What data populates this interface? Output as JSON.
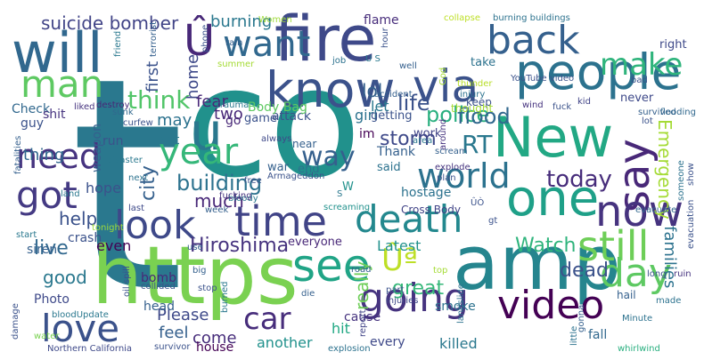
{
  "words": [
    {
      "text": "t",
      "color": "#2a788e"
    },
    {
      "text": "co",
      "color": "#21918c"
    },
    {
      "text": "https",
      "color": "#7ad151"
    },
    {
      "text": "amp",
      "color": "#25858e"
    },
    {
      "text": "fire",
      "color": "#3e4989"
    },
    {
      "text": "will",
      "color": "#31688e"
    },
    {
      "text": "New",
      "color": "#22a884"
    },
    {
      "text": "people",
      "color": "#2c728e"
    },
    {
      "text": "know",
      "color": "#3b528b"
    },
    {
      "text": "Û",
      "color": "#482878"
    },
    {
      "text": "want",
      "color": "#31688e"
    },
    {
      "text": "back",
      "color": "#35608d"
    },
    {
      "text": "man",
      "color": "#5ec962"
    },
    {
      "text": "via",
      "color": "#3b528b"
    },
    {
      "text": "u",
      "color": "#2a788e"
    },
    {
      "text": "year",
      "color": "#35b779"
    },
    {
      "text": "say",
      "color": "#482878"
    },
    {
      "text": "one",
      "color": "#1fa088"
    },
    {
      "text": "time",
      "color": "#414487"
    },
    {
      "text": "death",
      "color": "#23888e"
    },
    {
      "text": "now",
      "color": "#46337f"
    },
    {
      "text": "look",
      "color": "#3e4989"
    },
    {
      "text": "got",
      "color": "#443a83"
    },
    {
      "text": "world",
      "color": "#2c728e"
    },
    {
      "text": "need",
      "color": "#46337f"
    },
    {
      "text": "still",
      "color": "#6ece58"
    },
    {
      "text": "see",
      "color": "#20a486"
    },
    {
      "text": "going",
      "color": "#46337f"
    },
    {
      "text": "day",
      "color": "#5ec962"
    },
    {
      "text": "video",
      "color": "#440154"
    },
    {
      "text": "love",
      "color": "#3b528b"
    },
    {
      "text": "car",
      "color": "#472d7b"
    },
    {
      "text": "Ûª",
      "color": "#bddf26"
    },
    {
      "text": "make",
      "color": "#2fb47c"
    },
    {
      "text": "think",
      "color": "#52c569"
    },
    {
      "text": "today",
      "color": "#472d7b"
    },
    {
      "text": "RT",
      "color": "#2a788e"
    },
    {
      "text": "way",
      "color": "#35608d"
    },
    {
      "text": "Hiroshima",
      "color": "#46337f"
    },
    {
      "text": "Watch",
      "color": "#2fb47c"
    },
    {
      "text": "suicide bomber",
      "color": "#414487"
    },
    {
      "text": "burning",
      "color": "#2a788e"
    },
    {
      "text": "flame",
      "color": "#472d7b"
    },
    {
      "text": "Check",
      "color": "#31688e"
    },
    {
      "text": "home",
      "color": "#3e4989"
    },
    {
      "text": "first",
      "color": "#3b528b"
    },
    {
      "text": "lol",
      "color": "#35608d"
    },
    {
      "text": "police",
      "color": "#29af7f"
    },
    {
      "text": "storm",
      "color": "#3e4989"
    },
    {
      "text": "life",
      "color": "#3b528b"
    },
    {
      "text": "flood",
      "color": "#31688e"
    },
    {
      "text": "fear",
      "color": "#482878"
    },
    {
      "text": "girl",
      "color": "#2c728e"
    },
    {
      "text": "let",
      "color": "#2a788e"
    },
    {
      "text": "attack",
      "color": "#3b528b"
    },
    {
      "text": "Emergency",
      "color": "#a5db36"
    },
    {
      "text": "building",
      "color": "#2c728e"
    },
    {
      "text": "city",
      "color": "#35608d"
    },
    {
      "text": "two",
      "color": "#482878"
    },
    {
      "text": "may",
      "color": "#2c728e"
    },
    {
      "text": "Body Bag",
      "color": "#5ec962"
    },
    {
      "text": "much",
      "color": "#482878"
    },
    {
      "text": "help",
      "color": "#3b528b"
    },
    {
      "text": "thing",
      "color": "#31688e"
    },
    {
      "text": "live",
      "color": "#31688e"
    },
    {
      "text": "crash",
      "color": "#3b528b"
    },
    {
      "text": "good",
      "color": "#2a788e"
    },
    {
      "text": "hope",
      "color": "#3b528b"
    },
    {
      "text": "even",
      "color": "#440154"
    },
    {
      "text": "Latest",
      "color": "#21918c"
    },
    {
      "text": "dead",
      "color": "#3b528b"
    },
    {
      "text": "families",
      "color": "#2c728e"
    },
    {
      "text": "great",
      "color": "#35b779"
    },
    {
      "text": "really",
      "color": "#6ece58"
    },
    {
      "text": "bomb",
      "color": "#482878"
    },
    {
      "text": "siren",
      "color": "#35608d"
    },
    {
      "text": "Photo",
      "color": "#3e4989"
    },
    {
      "text": "Please",
      "color": "#3e4989"
    },
    {
      "text": "feel",
      "color": "#35608d"
    },
    {
      "text": "come",
      "color": "#472d7b"
    },
    {
      "text": "house",
      "color": "#440154"
    },
    {
      "text": "another",
      "color": "#21918c"
    },
    {
      "text": "killed",
      "color": "#2a788e"
    },
    {
      "text": "cause",
      "color": "#46337f"
    },
    {
      "text": "hit",
      "color": "#22a884"
    },
    {
      "text": "every",
      "color": "#3e4989"
    },
    {
      "text": "everyone",
      "color": "#482878"
    },
    {
      "text": "Thank",
      "color": "#35608d"
    },
    {
      "text": "said",
      "color": "#2c728e"
    },
    {
      "text": "work",
      "color": "#414487"
    },
    {
      "text": "getting",
      "color": "#3b528b"
    },
    {
      "text": "take",
      "color": "#2c728e"
    },
    {
      "text": "never",
      "color": "#3e4989"
    },
    {
      "text": "right",
      "color": "#3e4989"
    },
    {
      "text": "shit",
      "color": "#46337f"
    },
    {
      "text": "guy",
      "color": "#3b528b"
    },
    {
      "text": "weapon",
      "color": "#35608d"
    },
    {
      "text": "run",
      "color": "#3b528b"
    },
    {
      "text": "go",
      "color": "#482878"
    },
    {
      "text": "set",
      "color": "#2a788e"
    },
    {
      "text": "game",
      "color": "#3b528b"
    },
    {
      "text": "near",
      "color": "#35608d"
    },
    {
      "text": "war",
      "color": "#35608d"
    },
    {
      "text": "end",
      "color": "#2c728e"
    },
    {
      "text": "im",
      "color": "#440154"
    },
    {
      "text": "W",
      "color": "#21918c"
    },
    {
      "text": "hostage",
      "color": "#2c728e"
    },
    {
      "text": "Cross Body",
      "color": "#414487"
    },
    {
      "text": "smoke",
      "color": "#2c728e"
    },
    {
      "text": "fall",
      "color": "#31688e"
    },
    {
      "text": "head",
      "color": "#35608d"
    },
    {
      "text": "keep",
      "color": "#3b528b"
    },
    {
      "text": "thought",
      "color": "#a5db36"
    },
    {
      "text": "Women",
      "color": "#9fda3a"
    },
    {
      "text": "collapse",
      "color": "#bddf26"
    },
    {
      "text": "burning buildings",
      "color": "#2c728e"
    },
    {
      "text": "YouTube video",
      "color": "#3b528b"
    },
    {
      "text": "injury",
      "color": "#2c728e"
    },
    {
      "text": "terrorist",
      "color": "#35608d"
    },
    {
      "text": "curfew",
      "color": "#3b528b"
    },
    {
      "text": "destroy",
      "color": "#482878"
    },
    {
      "text": "liked",
      "color": "#46337f"
    },
    {
      "text": "summer",
      "color": "#a5db36"
    },
    {
      "text": "thunder",
      "color": "#b8de29"
    },
    {
      "text": "accident",
      "color": "#35608d"
    },
    {
      "text": "trauma",
      "color": "#2a788e"
    },
    {
      "text": "bad",
      "color": "#3b528b"
    },
    {
      "text": "kid",
      "color": "#414487"
    },
    {
      "text": "wind",
      "color": "#46337f"
    },
    {
      "text": "fuck",
      "color": "#3b528b"
    },
    {
      "text": "survived",
      "color": "#35608d"
    },
    {
      "text": "flooding",
      "color": "#31688e"
    },
    {
      "text": "disaster",
      "color": "#2a788e"
    },
    {
      "text": "fatalities",
      "color": "#35608d"
    },
    {
      "text": "sunk",
      "color": "#31688e"
    },
    {
      "text": "always",
      "color": "#3e4989"
    },
    {
      "text": "Armageddon",
      "color": "#3b528b"
    },
    {
      "text": "bloody",
      "color": "#2a788e"
    },
    {
      "text": "screaming",
      "color": "#21918c"
    },
    {
      "text": "scream",
      "color": "#35608d"
    },
    {
      "text": "explode",
      "color": "#46337f"
    },
    {
      "text": "plan",
      "color": "#3b528b"
    },
    {
      "text": "area",
      "color": "#2a788e"
    },
    {
      "text": "evacuate",
      "color": "#31688e"
    },
    {
      "text": "evacuation",
      "color": "#3b528b"
    },
    {
      "text": "ÛÒ",
      "color": "#3b528b"
    },
    {
      "text": "fucking",
      "color": "#46337f"
    },
    {
      "text": "free",
      "color": "#3b528b"
    },
    {
      "text": "land",
      "color": "#2a788e"
    },
    {
      "text": "next",
      "color": "#2c728e"
    },
    {
      "text": "last",
      "color": "#3e4989"
    },
    {
      "text": "week",
      "color": "#35608d"
    },
    {
      "text": "start",
      "color": "#2a788e"
    },
    {
      "text": "tonight",
      "color": "#9fda3a"
    },
    {
      "text": "big",
      "color": "#35608d"
    },
    {
      "text": "oil spill",
      "color": "#3b528b"
    },
    {
      "text": "collided",
      "color": "#3b528b"
    },
    {
      "text": "burned",
      "color": "#2a788e"
    },
    {
      "text": "stop",
      "color": "#3b528b"
    },
    {
      "text": "road",
      "color": "#35608d"
    },
    {
      "text": "injuries",
      "color": "#3e4989"
    },
    {
      "text": "landslide",
      "color": "#2c728e"
    },
    {
      "text": "report",
      "color": "#414487"
    },
    {
      "text": "part",
      "color": "#3b528b"
    },
    {
      "text": "top",
      "color": "#a5db36"
    },
    {
      "text": "bloodUpdate",
      "color": "#2a788e"
    },
    {
      "text": "damage",
      "color": "#3b528b"
    },
    {
      "text": "water",
      "color": "#7ad151"
    },
    {
      "text": "survivor",
      "color": "#3b528b"
    },
    {
      "text": "Northern California",
      "color": "#3e4989"
    },
    {
      "text": "explosion",
      "color": "#2c728e"
    },
    {
      "text": "little",
      "color": "#2c728e"
    },
    {
      "text": "gonna",
      "color": "#35608d"
    },
    {
      "text": "whirlwind",
      "color": "#29af7f"
    },
    {
      "text": "Minute",
      "color": "#2c728e"
    },
    {
      "text": "hail",
      "color": "#35608d"
    },
    {
      "text": "ruin",
      "color": "#46337f"
    },
    {
      "text": "long",
      "color": "#3b528b"
    },
    {
      "text": "made",
      "color": "#2c728e"
    },
    {
      "text": "rain",
      "color": "#35608d"
    },
    {
      "text": "friend",
      "color": "#2a788e"
    },
    {
      "text": "job",
      "color": "#2c728e"
    },
    {
      "text": "hour",
      "color": "#3b528b"
    },
    {
      "text": "well",
      "color": "#35608d"
    },
    {
      "text": "God",
      "color": "#a5db36"
    },
    {
      "text": "phone",
      "color": "#3b528b"
    },
    {
      "text": "U S",
      "color": "#2a788e"
    },
    {
      "text": "gt",
      "color": "#3b528b"
    },
    {
      "text": "die",
      "color": "#35608d"
    },
    {
      "text": "use",
      "color": "#35608d"
    },
    {
      "text": "S",
      "color": "#2a788e"
    },
    {
      "text": "lot",
      "color": "#3b528b"
    },
    {
      "text": "around",
      "color": "#46337f"
    },
    {
      "text": "someone",
      "color": "#2c728e"
    },
    {
      "text": "show",
      "color": "#3b528b"
    }
  ]
}
